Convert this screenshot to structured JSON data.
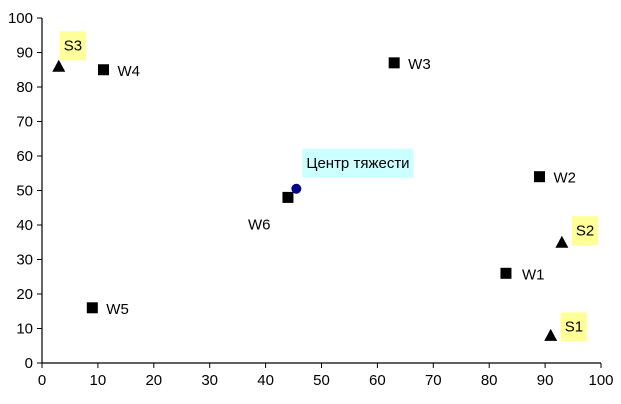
{
  "chart_data": {
    "type": "scatter",
    "xlim": [
      0,
      100
    ],
    "ylim": [
      0,
      100
    ],
    "x_ticks": [
      "0",
      "10",
      "20",
      "30",
      "40",
      "50",
      "60",
      "70",
      "80",
      "90",
      "100"
    ],
    "y_ticks": [
      "0",
      "10",
      "20",
      "30",
      "40",
      "50",
      "60",
      "70",
      "80",
      "90",
      "100"
    ],
    "grid": false,
    "series": [
      {
        "marker": "square",
        "color": "#000000",
        "points": [
          {
            "label": "W1",
            "x": 83,
            "y": 26
          },
          {
            "label": "W2",
            "x": 89,
            "y": 54
          },
          {
            "label": "W3",
            "x": 63,
            "y": 87
          },
          {
            "label": "W4",
            "x": 11,
            "y": 85
          },
          {
            "label": "W5",
            "x": 9,
            "y": 16
          },
          {
            "label": "W6",
            "x": 44,
            "y": 48
          }
        ]
      },
      {
        "marker": "triangle",
        "color": "#000000",
        "label_background": "#ffff99",
        "points": [
          {
            "label": "S1",
            "x": 91,
            "y": 8
          },
          {
            "label": "S2",
            "x": 93,
            "y": 35
          },
          {
            "label": "S3",
            "x": 3,
            "y": 86
          }
        ]
      },
      {
        "marker": "circle",
        "color": "#00008b",
        "label_background": "#ccffff",
        "points": [
          {
            "label": "Центр тяжести",
            "x": 45.5,
            "y": 50.5
          }
        ]
      }
    ]
  }
}
